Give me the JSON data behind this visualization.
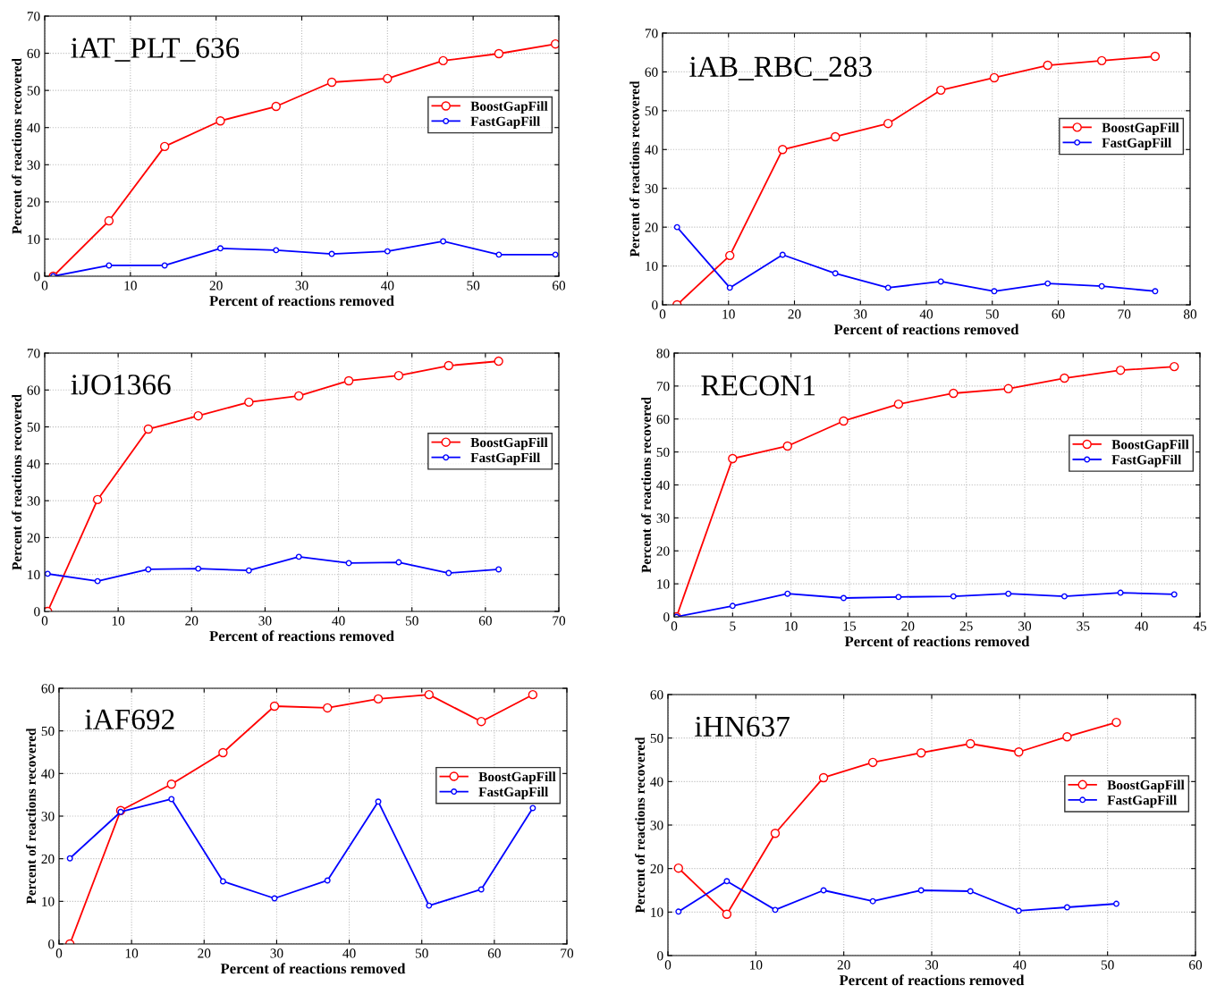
{
  "chart_data": [
    {
      "type": "line",
      "title": "iAT_PLT_636",
      "xlabel": "Percent of reactions removed",
      "ylabel": "Percent of reactions recovered",
      "x": [
        1,
        7.5,
        14,
        20.5,
        27,
        33.5,
        40,
        46.5,
        53,
        59.6
      ],
      "xlim": [
        0,
        60
      ],
      "xticks": [
        0,
        10,
        20,
        30,
        40,
        50,
        60
      ],
      "ylim": [
        0,
        70
      ],
      "yticks": [
        0,
        10,
        20,
        30,
        40,
        50,
        60,
        70
      ],
      "grid": true,
      "legend": "right",
      "marker": "circle",
      "line_style": "solid",
      "series": [
        {
          "name": "BoostGapFill",
          "color": "#ff0000",
          "values": [
            0,
            14.9,
            34.9,
            41.8,
            45.7,
            52.2,
            53.2,
            58,
            59.9,
            62.5
          ]
        },
        {
          "name": "FastGapFill",
          "color": "#0000ff",
          "values": [
            0,
            2.9,
            2.9,
            7.5,
            7,
            6,
            6.7,
            9.4,
            5.8,
            5.8
          ]
        }
      ]
    },
    {
      "type": "line",
      "title": "iAB_RBC_283",
      "xlabel": "Percent of reactions removed",
      "ylabel": "Percent of reactions recovered",
      "x": [
        2.2,
        10.2,
        18.2,
        26.2,
        34.2,
        42.2,
        50.3,
        58.4,
        66.6,
        74.7
      ],
      "xlim": [
        0,
        80
      ],
      "xticks": [
        0,
        10,
        20,
        30,
        40,
        50,
        60,
        70,
        80
      ],
      "ylim": [
        0,
        70
      ],
      "yticks": [
        0,
        10,
        20,
        30,
        40,
        50,
        60,
        70
      ],
      "grid": true,
      "legend": "right",
      "marker": "circle",
      "line_style": "solid",
      "series": [
        {
          "name": "BoostGapFill",
          "color": "#ff0000",
          "values": [
            0,
            12.7,
            40,
            43.3,
            46.7,
            55.3,
            58.5,
            61.7,
            62.9,
            64
          ]
        },
        {
          "name": "FastGapFill",
          "color": "#0000ff",
          "values": [
            20,
            4.4,
            12.9,
            8.1,
            4.4,
            6,
            3.5,
            5.5,
            4.8,
            3.5
          ]
        }
      ]
    },
    {
      "type": "line",
      "title": "iJO1366",
      "xlabel": "Percent of reactions removed",
      "ylabel": "Percent of reactions recovered",
      "x": [
        0.4,
        7.2,
        14.1,
        20.9,
        27.8,
        34.6,
        41.4,
        48.2,
        55,
        61.8
      ],
      "xlim": [
        0,
        70
      ],
      "xticks": [
        0,
        10,
        20,
        30,
        40,
        50,
        60,
        70
      ],
      "ylim": [
        0,
        70
      ],
      "yticks": [
        0,
        10,
        20,
        30,
        40,
        50,
        60,
        70
      ],
      "grid": true,
      "legend": "right",
      "marker": "circle",
      "line_style": "solid",
      "series": [
        {
          "name": "BoostGapFill",
          "color": "#ff0000",
          "values": [
            0,
            30.3,
            49.4,
            53,
            56.7,
            58.4,
            62.5,
            63.9,
            66.6,
            67.8
          ]
        },
        {
          "name": "FastGapFill",
          "color": "#0000ff",
          "values": [
            10.2,
            8.2,
            11.4,
            11.6,
            11.1,
            14.8,
            13.1,
            13.3,
            10.4,
            11.4
          ]
        }
      ]
    },
    {
      "type": "line",
      "title": "RECON1",
      "xlabel": "Percent of reactions removed",
      "ylabel": "Percent of reactions recovered",
      "x": [
        0.2,
        5,
        9.7,
        14.5,
        19.2,
        23.9,
        28.6,
        33.4,
        38.2,
        42.8
      ],
      "xlim": [
        0,
        45
      ],
      "xticks": [
        0,
        5,
        10,
        15,
        20,
        25,
        30,
        35,
        40,
        45
      ],
      "ylim": [
        0,
        80
      ],
      "yticks": [
        0,
        10,
        20,
        30,
        40,
        50,
        60,
        70,
        80
      ],
      "grid": true,
      "legend": "right",
      "marker": "circle",
      "line_style": "solid",
      "series": [
        {
          "name": "BoostGapFill",
          "color": "#ff0000",
          "values": [
            0,
            48,
            51.8,
            59.4,
            64.5,
            67.8,
            69.2,
            72.4,
            74.8,
            75.9
          ]
        },
        {
          "name": "FastGapFill",
          "color": "#0000ff",
          "values": [
            0,
            3.3,
            7,
            5.7,
            6,
            6.2,
            7,
            6.2,
            7.3,
            6.8
          ]
        }
      ]
    },
    {
      "type": "line",
      "title": "iAF692",
      "xlabel": "Percent of reactions removed",
      "ylabel": "Percent of reactions recovered",
      "x": [
        1.5,
        8.5,
        15.5,
        22.6,
        29.7,
        37,
        44,
        51,
        58.2,
        65.3
      ],
      "xlim": [
        0,
        70
      ],
      "xticks": [
        0,
        10,
        20,
        30,
        40,
        50,
        60,
        70
      ],
      "ylim": [
        0,
        60
      ],
      "yticks": [
        0,
        10,
        20,
        30,
        40,
        50,
        60
      ],
      "grid": true,
      "legend": "right",
      "marker": "circle",
      "line_style": "solid",
      "series": [
        {
          "name": "BoostGapFill",
          "color": "#ff0000",
          "values": [
            0,
            31.3,
            37.5,
            44.9,
            55.8,
            55.4,
            57.5,
            58.5,
            52.2,
            58.5
          ]
        },
        {
          "name": "FastGapFill",
          "color": "#0000ff",
          "values": [
            20.1,
            31,
            34,
            14.7,
            10.7,
            14.9,
            33.4,
            9,
            12.8,
            31.9
          ]
        }
      ]
    },
    {
      "type": "line",
      "title": "iHN637",
      "xlabel": "Percent of reactions removed",
      "ylabel": "Percent of reactions recovered",
      "x": [
        1.2,
        6.7,
        12.2,
        17.7,
        23.3,
        28.8,
        34.4,
        39.9,
        45.4,
        51
      ],
      "xlim": [
        0,
        60
      ],
      "xticks": [
        0,
        10,
        20,
        30,
        40,
        50,
        60
      ],
      "ylim": [
        0,
        60
      ],
      "yticks": [
        0,
        10,
        20,
        30,
        40,
        50,
        60
      ],
      "grid": true,
      "legend": "right",
      "marker": "circle",
      "line_style": "solid",
      "series": [
        {
          "name": "BoostGapFill",
          "color": "#ff0000",
          "values": [
            20.1,
            9.5,
            28.1,
            40.9,
            44.4,
            46.6,
            48.7,
            46.8,
            50.3,
            53.6
          ]
        },
        {
          "name": "FastGapFill",
          "color": "#0000ff",
          "values": [
            10.1,
            17.1,
            10.5,
            15,
            12.5,
            15,
            14.8,
            10.3,
            11.1,
            11.9
          ]
        }
      ]
    }
  ]
}
